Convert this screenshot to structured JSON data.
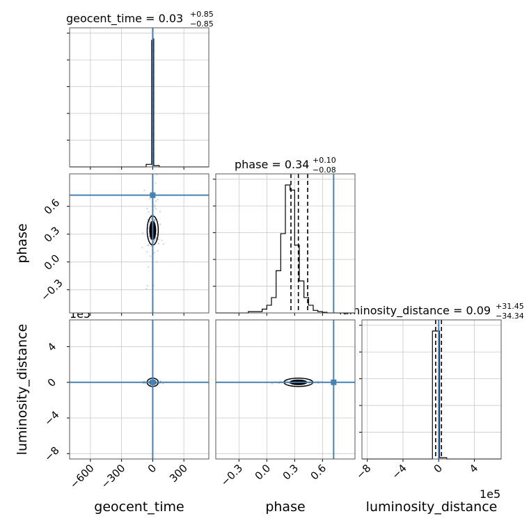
{
  "figure": {
    "titles": {
      "geocent_time": {
        "text": "geocent_time = 0.03",
        "sup": "+0.85",
        "sub": "−0.85"
      },
      "phase": {
        "text": "phase = 0.34",
        "sup": "+0.10",
        "sub": "−0.08"
      },
      "luminosity_distance": {
        "text": "luminosity_distance = 0.09",
        "sup": "+31.45",
        "sub": "−34.34"
      }
    },
    "xlabels": {
      "geocent_time": "geocent_time",
      "phase": "phase",
      "luminosity_distance": "luminosity_distance"
    },
    "ylabels": {
      "phase": "phase",
      "luminosity_distance": "luminosity_distance"
    },
    "offset_labels": {
      "left_y_bottom": "1e5",
      "bottom_x_right": "1e5"
    },
    "colors": {
      "truth": "#4682b4",
      "hist": "#000000",
      "grid": "#c8c8c8",
      "samples": "#9a9a9a"
    }
  },
  "chart_data": {
    "type": "corner",
    "parameters": [
      "geocent_time",
      "phase",
      "luminosity_distance"
    ],
    "truths": {
      "geocent_time": 0,
      "phase": 0.72,
      "luminosity_distance": 0
    },
    "axis_ranges": {
      "geocent_time": [
        -800,
        540
      ],
      "phase": [
        -0.55,
        0.95
      ],
      "luminosity_distance": [
        -8.6,
        7.0
      ]
    },
    "luminosity_distance_scale": "1e5",
    "ticks": {
      "geocent_time": [
        -600,
        -300,
        0,
        300
      ],
      "phase": [
        -0.3,
        0.0,
        0.3,
        0.6
      ],
      "luminosity_distance": [
        -8,
        -4,
        0,
        4
      ]
    },
    "tick_labels": {
      "geocent_time": [
        "−600",
        "−300",
        "0",
        "300"
      ],
      "phase": [
        "−0.3",
        "0.0",
        "0.3",
        "0.6"
      ],
      "luminosity_distance": [
        "−8",
        "−4",
        "0",
        "4"
      ]
    },
    "quantiles": {
      "geocent_time": [
        -0.82,
        0.03,
        0.88
      ],
      "phase": [
        0.26,
        0.34,
        0.44
      ],
      "luminosity_distance": [
        -0.34,
        0.0,
        0.31
      ]
    },
    "histograms": {
      "geocent_time": {
        "edges": [
          -800,
          -733,
          -666,
          -599,
          -532,
          -465,
          -398,
          -331,
          -264,
          -197,
          -130,
          -63,
          -10,
          0,
          10,
          63,
          130,
          197,
          264,
          331,
          398,
          465,
          540
        ],
        "counts": [
          0,
          0,
          0,
          0,
          0,
          0,
          0,
          0,
          0,
          0,
          0,
          0.02,
          0.99,
          1.0,
          0.01,
          0,
          0,
          0,
          0,
          0,
          0,
          0
        ]
      },
      "phase": {
        "edges": [
          -0.55,
          -0.2,
          -0.05,
          0.0,
          0.05,
          0.1,
          0.15,
          0.2,
          0.25,
          0.3,
          0.35,
          0.4,
          0.45,
          0.5,
          0.55,
          0.6,
          0.65,
          0.7,
          0.75,
          0.8,
          0.85,
          0.95
        ],
        "counts": [
          0,
          0.01,
          0.03,
          0.06,
          0.12,
          0.33,
          0.62,
          1.0,
          0.96,
          0.53,
          0.25,
          0.12,
          0.06,
          0.02,
          0.01,
          0.005,
          0,
          0,
          0,
          0,
          0
        ]
      },
      "luminosity_distance": {
        "edges": [
          -8.6,
          -0.7,
          0.1,
          0.9,
          7.0
        ],
        "counts": [
          0,
          1.0,
          0.01,
          0
        ]
      }
    }
  }
}
